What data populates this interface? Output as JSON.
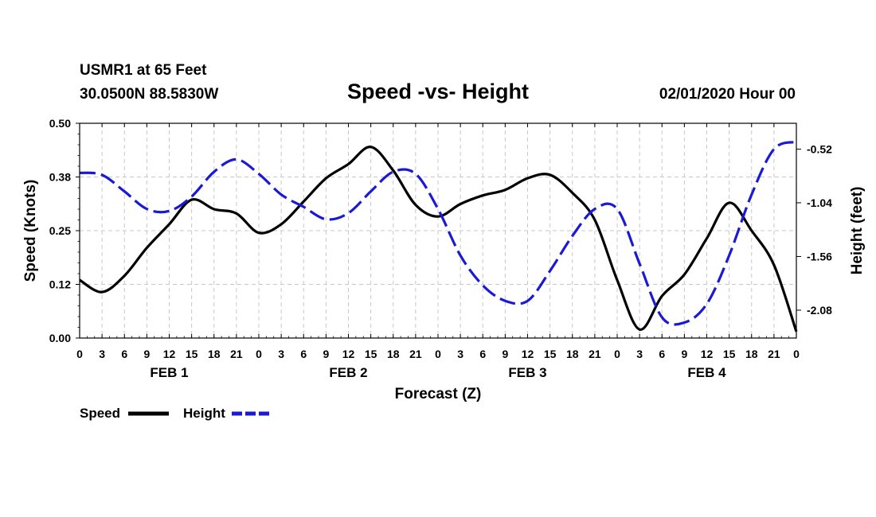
{
  "header": {
    "station": "USMR1 at 65 Feet",
    "coords": "30.0500N 88.5830W",
    "title": "Speed -vs- Height",
    "datetime": "02/01/2020 Hour 00"
  },
  "colors": {
    "speed": "#000000",
    "height": "#1a1ad6",
    "grid": "#c8c8c8"
  },
  "chart_data": {
    "type": "line",
    "title": "Speed -vs- Height",
    "xlabel": "Forecast (Z)",
    "ylabel_left": "Speed (Knots)",
    "ylabel_right": "Height (feet)",
    "xlim": [
      0,
      96
    ],
    "ylim_left": [
      0,
      0.5
    ],
    "ylim_right": [
      -2.35,
      -0.27
    ],
    "y_left_ticks": [
      "0.00",
      "0.12",
      "0.25",
      "0.38",
      "0.50"
    ],
    "y_left_tick_values": [
      0,
      0.125,
      0.25,
      0.375,
      0.5
    ],
    "y_right_ticks": [
      "-0.52",
      "-1.04",
      "-1.56",
      "-2.08"
    ],
    "y_right_tick_values": [
      -0.52,
      -1.04,
      -1.56,
      -2.08
    ],
    "x_tick_labels": [
      "0",
      "3",
      "6",
      "9",
      "12",
      "15",
      "18",
      "21",
      "0",
      "3",
      "6",
      "9",
      "12",
      "15",
      "18",
      "21",
      "0",
      "3",
      "6",
      "9",
      "12",
      "15",
      "18",
      "21",
      "0",
      "3",
      "6",
      "9",
      "12",
      "15",
      "18",
      "21",
      "0"
    ],
    "day_labels": [
      {
        "label": "FEB 1",
        "x": 12
      },
      {
        "label": "FEB 2",
        "x": 36
      },
      {
        "label": "FEB 3",
        "x": 60
      },
      {
        "label": "FEB 4",
        "x": 84
      }
    ],
    "grid": true,
    "legend_position": "bottom-left",
    "series": [
      {
        "name": "Speed",
        "axis": "left",
        "style": "solid",
        "x": [
          0,
          3,
          6,
          9,
          12,
          15,
          18,
          21,
          24,
          27,
          30,
          33,
          36,
          39,
          42,
          45,
          48,
          51,
          54,
          57,
          60,
          63,
          66,
          69,
          72,
          75,
          78,
          81,
          84,
          87,
          90,
          93,
          96
        ],
        "values": [
          0.135,
          0.107,
          0.145,
          0.21,
          0.265,
          0.322,
          0.3,
          0.29,
          0.245,
          0.265,
          0.318,
          0.372,
          0.405,
          0.445,
          0.39,
          0.31,
          0.283,
          0.312,
          0.332,
          0.345,
          0.372,
          0.38,
          0.338,
          0.275,
          0.135,
          0.02,
          0.098,
          0.148,
          0.232,
          0.315,
          0.25,
          0.17,
          0.015
        ]
      },
      {
        "name": "Height",
        "axis": "right",
        "style": "dashed",
        "x": [
          0,
          3,
          6,
          9,
          12,
          15,
          18,
          21,
          24,
          27,
          30,
          33,
          36,
          39,
          42,
          45,
          48,
          51,
          54,
          57,
          60,
          63,
          66,
          69,
          72,
          75,
          78,
          81,
          84,
          87,
          90,
          93,
          96
        ],
        "values": [
          -0.75,
          -0.77,
          -0.93,
          -1.1,
          -1.12,
          -0.98,
          -0.74,
          -0.62,
          -0.76,
          -0.96,
          -1.08,
          -1.2,
          -1.14,
          -0.93,
          -0.74,
          -0.76,
          -1.1,
          -1.55,
          -1.84,
          -1.99,
          -1.99,
          -1.7,
          -1.36,
          -1.1,
          -1.1,
          -1.63,
          -2.15,
          -2.2,
          -2.02,
          -1.55,
          -0.96,
          -0.52,
          -0.45
        ]
      }
    ]
  },
  "legend": {
    "speed_label": "Speed",
    "height_label": "Height"
  }
}
